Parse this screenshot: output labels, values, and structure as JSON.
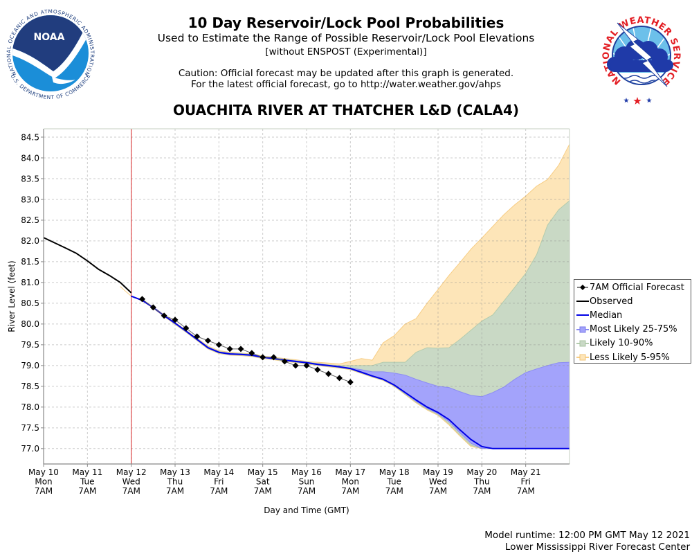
{
  "header": {
    "title": "10 Day Reservoir/Lock Pool Probabilities",
    "subtitle": "Used to Estimate the Range of Possible Reservoir/Lock Pool Elevations",
    "note": "[without ENSPOST (Experimental)]",
    "caution_1": "Caution: Official forecast may be updated after this graph is generated.",
    "caution_2": "For the latest official forecast, go to http://water.weather.gov/ahps",
    "station": "OUACHITA RIVER AT THATCHER L&D (CALA4)"
  },
  "logos": {
    "noaa": {
      "icon": "noaa-logo",
      "name": "NOAA",
      "ring_top": "NATIONAL OCEANIC AND ATMOSPHERIC ADMINISTRATION",
      "ring_bottom": "U.S. DEPARTMENT OF COMMERCE"
    },
    "nws": {
      "icon": "nws-logo",
      "ring": "NATIONAL WEATHER SERVICE"
    }
  },
  "footer": {
    "runtime": "Model runtime: 12:00 PM GMT May 12 2021",
    "center": "Lower Mississippi River Forecast Center"
  },
  "colors": {
    "observed": "#000000",
    "median": "#0000e6",
    "official_forecast": "#000000",
    "forecast_connector": "#666666",
    "band_25_75": "#a3a3fb",
    "band_25_75_edge": "#8b8bf3",
    "band_10_90": "#c9d9c5",
    "band_10_90_edge": "#b3cbad",
    "band_5_95": "#fde5b8",
    "band_5_95_edge": "#f7cd84",
    "current_time_line": "#d82222",
    "axis": "#888888",
    "plot_border": "#c4cfc0",
    "nws_red": "#e31d23",
    "nws_blue": "#1f3aa8",
    "nws_sky": "#6cc0ea",
    "noaa_navy": "#213d7e",
    "noaa_blue": "#1b8ed8"
  },
  "legend": {
    "position": "right",
    "items": [
      {
        "key": "official_forecast",
        "label": "7AM Official Forecast"
      },
      {
        "key": "observed",
        "label": "Observed"
      },
      {
        "key": "median",
        "label": "Median"
      },
      {
        "key": "band_25_75",
        "label": "Most Likely 25-75%"
      },
      {
        "key": "band_10_90",
        "label": "Likely 10-90%"
      },
      {
        "key": "band_5_95",
        "label": "Less Likely 5-95%"
      }
    ]
  },
  "chart_data": {
    "type": "area",
    "title": "10 Day Reservoir/Lock Pool Probabilities",
    "subtitle": "OUACHITA RIVER AT THATCHER L&D (CALA4)",
    "xlabel": "Day and Time (GMT)",
    "ylabel": "River Level (feet)",
    "x_units": "days after May 10 7AM GMT",
    "xlim": [
      0,
      12
    ],
    "ylim": [
      76.63,
      84.7
    ],
    "grid": true,
    "legend_position": "right",
    "y_ticks": [
      "77.0",
      "77.5",
      "78.0",
      "78.5",
      "79.0",
      "79.5",
      "80.0",
      "80.5",
      "81.0",
      "81.5",
      "82.0",
      "82.5",
      "83.0",
      "83.5",
      "84.0",
      "84.5"
    ],
    "x_ticks": [
      {
        "t": 0,
        "date": "May 10",
        "dow": "Mon",
        "time": "7AM"
      },
      {
        "t": 1,
        "date": "May 11",
        "dow": "Tue",
        "time": "7AM"
      },
      {
        "t": 2,
        "date": "May 12",
        "dow": "Wed",
        "time": "7AM"
      },
      {
        "t": 3,
        "date": "May 13",
        "dow": "Thu",
        "time": "7AM"
      },
      {
        "t": 4,
        "date": "May 14",
        "dow": "Fri",
        "time": "7AM"
      },
      {
        "t": 5,
        "date": "May 15",
        "dow": "Sat",
        "time": "7AM"
      },
      {
        "t": 6,
        "date": "May 16",
        "dow": "Sun",
        "time": "7AM"
      },
      {
        "t": 7,
        "date": "May 17",
        "dow": "Mon",
        "time": "7AM"
      },
      {
        "t": 8,
        "date": "May 18",
        "dow": "Tue",
        "time": "7AM"
      },
      {
        "t": 9,
        "date": "May 19",
        "dow": "Wed",
        "time": "7AM"
      },
      {
        "t": 10,
        "date": "May 20",
        "dow": "Thu",
        "time": "7AM"
      },
      {
        "t": 11,
        "date": "May 21",
        "dow": "Fri",
        "time": "7AM"
      }
    ],
    "current_time_marker": {
      "t": 2
    },
    "series": [
      {
        "key": "median",
        "name": "Median",
        "t": [
          2,
          2.25,
          2.5,
          2.75,
          3,
          3.25,
          3.5,
          3.75,
          4,
          4.25,
          4.5,
          4.75,
          5,
          5.25,
          5.5,
          5.75,
          6,
          6.25,
          6.5,
          6.75,
          7,
          7.25,
          7.5,
          7.75,
          8,
          8.25,
          8.5,
          8.75,
          9,
          9.25,
          9.5,
          9.75,
          10,
          10.25,
          10.5,
          10.75,
          11,
          11.25,
          11.5,
          11.75,
          12
        ],
        "values": [
          80.67,
          80.57,
          80.4,
          80.2,
          80.02,
          79.83,
          79.63,
          79.43,
          79.32,
          79.28,
          79.27,
          79.25,
          79.2,
          79.17,
          79.13,
          79.1,
          79.07,
          79.03,
          79.0,
          78.97,
          78.93,
          78.84,
          78.75,
          78.67,
          78.53,
          78.35,
          78.17,
          78.0,
          77.87,
          77.7,
          77.45,
          77.22,
          77.05,
          77.0,
          77.0,
          77.0,
          77.0,
          77.0,
          77.0,
          77.0,
          77.0
        ]
      },
      {
        "key": "observed",
        "name": "Observed",
        "t": [
          0,
          0.5,
          0.75,
          1,
          1.25,
          1.5,
          1.75,
          2
        ],
        "values": [
          82.08,
          81.83,
          81.7,
          81.52,
          81.32,
          81.17,
          81.0,
          80.75
        ]
      },
      {
        "key": "official_forecast",
        "name": "7AM Official Forecast",
        "t": [
          2.25,
          2.5,
          2.75,
          3,
          3.25,
          3.5,
          3.75,
          4,
          4.25,
          4.5,
          4.75,
          5,
          5.25,
          5.5,
          5.75,
          6,
          6.25,
          6.5,
          6.75,
          7
        ],
        "values": [
          80.6,
          80.4,
          80.2,
          80.1,
          79.9,
          79.7,
          79.6,
          79.5,
          79.4,
          79.4,
          79.3,
          79.2,
          79.2,
          79.1,
          79.0,
          79.0,
          78.9,
          78.8,
          78.7,
          78.6
        ]
      }
    ],
    "bands": {
      "t": [
        1.75,
        2,
        2.25,
        2.5,
        2.75,
        3,
        3.25,
        3.5,
        3.75,
        4,
        4.25,
        4.5,
        4.75,
        5,
        5.25,
        5.5,
        5.75,
        6,
        6.25,
        6.5,
        6.75,
        7,
        7.25,
        7.5,
        7.75,
        8,
        8.25,
        8.5,
        8.75,
        9,
        9.25,
        9.5,
        9.75,
        10,
        10.25,
        10.5,
        10.75,
        11,
        11.25,
        11.5,
        11.75,
        12
      ],
      "p05": [
        80.9,
        80.67,
        80.56,
        80.38,
        80.18,
        79.99,
        79.8,
        79.6,
        79.4,
        79.29,
        79.25,
        79.24,
        79.22,
        79.17,
        79.14,
        79.1,
        79.07,
        79.04,
        79.0,
        78.97,
        78.94,
        78.9,
        78.81,
        78.72,
        78.64,
        78.5,
        78.3,
        78.1,
        77.93,
        77.8,
        77.57,
        77.3,
        77.05,
        77.0,
        77.0,
        77.0,
        77.0,
        77.0,
        77.0,
        77.0,
        77.0,
        77.0
      ],
      "p10": [
        null,
        80.67,
        80.56,
        80.39,
        80.19,
        80.0,
        79.81,
        79.61,
        79.41,
        79.3,
        79.26,
        79.25,
        79.23,
        79.18,
        79.15,
        79.11,
        79.08,
        79.05,
        79.01,
        78.98,
        78.95,
        78.91,
        78.82,
        78.73,
        78.65,
        78.51,
        78.31,
        78.12,
        77.95,
        77.82,
        77.6,
        77.33,
        77.08,
        77.0,
        77.0,
        77.0,
        77.0,
        77.0,
        77.0,
        77.0,
        77.0,
        77.0
      ],
      "p25": [
        null,
        80.67,
        80.57,
        80.4,
        80.2,
        80.01,
        79.82,
        79.62,
        79.42,
        79.31,
        79.27,
        79.26,
        79.24,
        79.19,
        79.16,
        79.12,
        79.09,
        79.06,
        79.02,
        78.99,
        78.96,
        78.92,
        78.83,
        78.74,
        78.66,
        78.52,
        78.33,
        78.14,
        77.97,
        77.84,
        77.65,
        77.38,
        77.13,
        77.0,
        77.0,
        77.0,
        77.0,
        77.0,
        77.0,
        77.0,
        77.0,
        77.0
      ],
      "p75": [
        null,
        80.67,
        80.58,
        80.41,
        80.21,
        80.03,
        79.84,
        79.64,
        79.44,
        79.33,
        79.29,
        79.28,
        79.26,
        79.21,
        79.18,
        79.14,
        79.11,
        79.08,
        79.04,
        79.01,
        78.98,
        78.94,
        78.9,
        78.85,
        78.85,
        78.82,
        78.77,
        78.67,
        78.58,
        78.5,
        78.47,
        78.37,
        78.28,
        78.25,
        78.35,
        78.48,
        78.67,
        78.83,
        78.92,
        79.0,
        79.07,
        79.08
      ],
      "p90": [
        null,
        80.67,
        80.58,
        80.41,
        80.21,
        80.03,
        79.84,
        79.65,
        79.45,
        79.34,
        79.3,
        79.29,
        79.27,
        79.22,
        79.19,
        79.15,
        79.12,
        79.09,
        79.05,
        79.02,
        79.0,
        79.0,
        79.0,
        79.0,
        79.08,
        79.08,
        79.08,
        79.32,
        79.43,
        79.42,
        79.43,
        79.63,
        79.85,
        80.07,
        80.22,
        80.55,
        80.88,
        81.22,
        81.67,
        82.38,
        82.75,
        82.97
      ],
      "p95": [
        80.9,
        80.67,
        80.58,
        80.41,
        80.22,
        80.04,
        79.85,
        79.66,
        79.47,
        79.36,
        79.32,
        79.3,
        79.28,
        79.23,
        79.2,
        79.17,
        79.14,
        79.1,
        79.08,
        79.06,
        79.04,
        79.1,
        79.17,
        79.13,
        79.55,
        79.72,
        80.0,
        80.13,
        80.5,
        80.83,
        81.17,
        81.48,
        81.8,
        82.07,
        82.35,
        82.63,
        82.87,
        83.08,
        83.32,
        83.48,
        83.82,
        84.33
      ]
    }
  }
}
